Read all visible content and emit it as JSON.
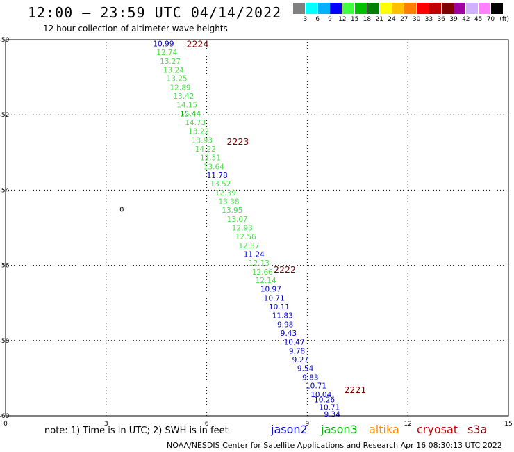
{
  "title": "12:00 – 23:59 UTC 04/14/2022",
  "subtitle": "12 hour collection of altimeter wave heights",
  "legend": {
    "colors": [
      "#808080",
      "#00ffff",
      "#00b0ff",
      "#0000ff",
      "#40ff40",
      "#00c000",
      "#008000",
      "#ffff00",
      "#ffc000",
      "#ff8000",
      "#ff0000",
      "#c00000",
      "#800000",
      "#a000a0",
      "#d0b0ff",
      "#ff80ff",
      "#000000"
    ],
    "labels": [
      "3",
      "6",
      "9",
      "12",
      "15",
      "18",
      "21",
      "24",
      "27",
      "30",
      "33",
      "36",
      "39",
      "42",
      "45",
      "70"
    ],
    "unit": "(ft)"
  },
  "note": "note: 1) Time is in UTC; 2) SWH is in feet",
  "satellites": [
    {
      "name": "jason2",
      "color": "#0000cc"
    },
    {
      "name": "jason3",
      "color": "#00aa00"
    },
    {
      "name": "altika",
      "color": "#ff8c00"
    },
    {
      "name": "cryosat",
      "color": "#cc0000"
    },
    {
      "name": "s3a",
      "color": "#800000"
    }
  ],
  "footer": "NOAA/NESDIS Center for Satellite Applications and Research    Apr 16 08:30:13 UTC 2022",
  "chart_data": {
    "type": "scatter",
    "xlim": [
      0,
      15
    ],
    "ylim": [
      -60,
      -50
    ],
    "xticks": [
      "0",
      "3",
      "6",
      "9",
      "12",
      "15"
    ],
    "yticks": [
      "-50",
      "-52",
      "-54",
      "-56",
      "-58",
      "-60"
    ],
    "grid": true,
    "other_labels": [
      {
        "text": "0",
        "x": 3.4,
        "y": -54.5
      }
    ],
    "time_labels": [
      {
        "text": "2224",
        "x": 5.4,
        "y": -50.1,
        "color": "#800000"
      },
      {
        "text": "2223",
        "x": 6.6,
        "y": -52.7,
        "color": "#800000"
      },
      {
        "text": "2222",
        "x": 8.0,
        "y": -56.1,
        "color": "#800000"
      },
      {
        "text": "2221",
        "x": 10.1,
        "y": -59.3,
        "color": "#800000"
      }
    ],
    "points": [
      {
        "x": 4.4,
        "y": -50.1,
        "value": "10.99",
        "color": "#0000cc"
      },
      {
        "x": 4.5,
        "y": -50.33,
        "value": "12.74",
        "color": "#4ce04c"
      },
      {
        "x": 4.6,
        "y": -50.57,
        "value": "13.27",
        "color": "#4ce04c"
      },
      {
        "x": 4.7,
        "y": -50.8,
        "value": "13.24",
        "color": "#4ce04c"
      },
      {
        "x": 4.8,
        "y": -51.03,
        "value": "13.25",
        "color": "#4ce04c"
      },
      {
        "x": 4.9,
        "y": -51.27,
        "value": "12.89",
        "color": "#4ce04c"
      },
      {
        "x": 5.0,
        "y": -51.5,
        "value": "13.42",
        "color": "#4ce04c"
      },
      {
        "x": 5.1,
        "y": -51.73,
        "value": "14.15",
        "color": "#4ce04c"
      },
      {
        "x": 5.2,
        "y": -51.97,
        "value": "15.44",
        "color": "#00aa00"
      },
      {
        "x": 5.35,
        "y": -52.2,
        "value": "14.73",
        "color": "#4ce04c"
      },
      {
        "x": 5.45,
        "y": -52.43,
        "value": "13.22",
        "color": "#4ce04c"
      },
      {
        "x": 5.55,
        "y": -52.67,
        "value": "13.93",
        "color": "#4ce04c"
      },
      {
        "x": 5.65,
        "y": -52.9,
        "value": "14.22",
        "color": "#4ce04c"
      },
      {
        "x": 5.8,
        "y": -53.13,
        "value": "12.51",
        "color": "#4ce04c"
      },
      {
        "x": 5.9,
        "y": -53.37,
        "value": "13.64",
        "color": "#4ce04c"
      },
      {
        "x": 6.0,
        "y": -53.6,
        "value": "11.78",
        "color": "#0000cc"
      },
      {
        "x": 6.1,
        "y": -53.83,
        "value": "13.52",
        "color": "#4ce04c"
      },
      {
        "x": 6.25,
        "y": -54.07,
        "value": "12.39",
        "color": "#4ce04c"
      },
      {
        "x": 6.35,
        "y": -54.3,
        "value": "13.38",
        "color": "#4ce04c"
      },
      {
        "x": 6.45,
        "y": -54.53,
        "value": "13.95",
        "color": "#4ce04c"
      },
      {
        "x": 6.6,
        "y": -54.77,
        "value": "13.07",
        "color": "#4ce04c"
      },
      {
        "x": 6.75,
        "y": -55.0,
        "value": "12.93",
        "color": "#4ce04c"
      },
      {
        "x": 6.85,
        "y": -55.23,
        "value": "12.56",
        "color": "#4ce04c"
      },
      {
        "x": 6.95,
        "y": -55.47,
        "value": "12.87",
        "color": "#4ce04c"
      },
      {
        "x": 7.1,
        "y": -55.7,
        "value": "11.24",
        "color": "#0000cc"
      },
      {
        "x": 7.25,
        "y": -55.93,
        "value": "12.13",
        "color": "#4ce04c"
      },
      {
        "x": 7.35,
        "y": -56.17,
        "value": "12.66",
        "color": "#4ce04c"
      },
      {
        "x": 7.45,
        "y": -56.4,
        "value": "12.14",
        "color": "#4ce04c"
      },
      {
        "x": 7.6,
        "y": -56.63,
        "value": "10.97",
        "color": "#0000cc"
      },
      {
        "x": 7.7,
        "y": -56.87,
        "value": "10.71",
        "color": "#0000cc"
      },
      {
        "x": 7.85,
        "y": -57.1,
        "value": "10.11",
        "color": "#0000cc"
      },
      {
        "x": 7.95,
        "y": -57.33,
        "value": "11.83",
        "color": "#0000cc"
      },
      {
        "x": 8.1,
        "y": -57.57,
        "value": "9.98",
        "color": "#0000cc"
      },
      {
        "x": 8.2,
        "y": -57.8,
        "value": "9.43",
        "color": "#0000cc"
      },
      {
        "x": 8.3,
        "y": -58.03,
        "value": "10.47",
        "color": "#0000cc"
      },
      {
        "x": 8.45,
        "y": -58.27,
        "value": "9.78",
        "color": "#0000cc"
      },
      {
        "x": 8.55,
        "y": -58.5,
        "value": "9.27",
        "color": "#0000cc"
      },
      {
        "x": 8.7,
        "y": -58.73,
        "value": "9.54",
        "color": "#0000cc"
      },
      {
        "x": 8.85,
        "y": -58.97,
        "value": "9.83",
        "color": "#0000cc"
      },
      {
        "x": 8.95,
        "y": -59.2,
        "value": "10.71",
        "color": "#0000cc"
      },
      {
        "x": 9.1,
        "y": -59.43,
        "value": "10.04",
        "color": "#0000cc"
      },
      {
        "x": 9.2,
        "y": -59.57,
        "value": "10.26",
        "color": "#0000cc"
      },
      {
        "x": 9.35,
        "y": -59.77,
        "value": "10.71",
        "color": "#0000cc"
      },
      {
        "x": 9.5,
        "y": -59.95,
        "value": "9.34",
        "color": "#0000cc"
      }
    ]
  }
}
